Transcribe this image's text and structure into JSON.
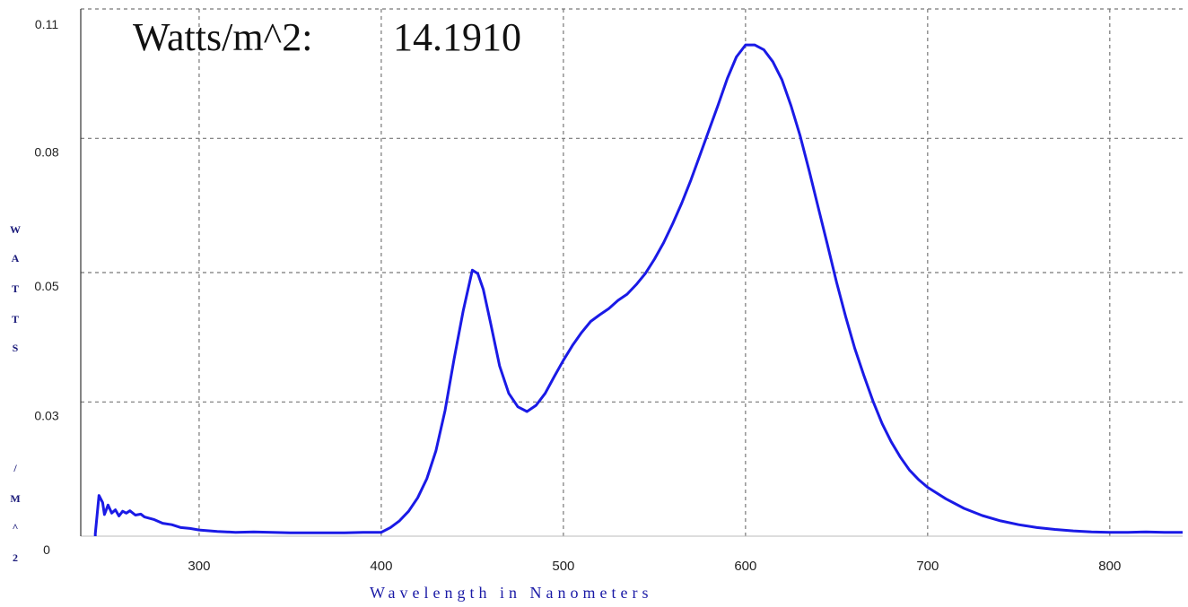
{
  "readout": {
    "label": "Watts/m^2:",
    "value": "14.1910"
  },
  "chart_data": {
    "type": "line",
    "title": "",
    "xlabel": "Wavelength in Nanometers",
    "ylabel_letters": [
      "W",
      "A",
      "T",
      "T",
      "S",
      "/",
      "M",
      "^",
      "2"
    ],
    "xlim": [
      235,
      840
    ],
    "ylim": [
      0,
      0.11
    ],
    "x_ticks": [
      300,
      400,
      500,
      600,
      700,
      800
    ],
    "y_ticks": [
      {
        "value": 0,
        "label": "0"
      },
      {
        "value": 0.028,
        "label": "0.03"
      },
      {
        "value": 0.055,
        "label": "0.05"
      },
      {
        "value": 0.083,
        "label": "0.08"
      },
      {
        "value": 0.11,
        "label": "0.11"
      }
    ],
    "grid": true,
    "line_color": "#1a1ae6",
    "series": [
      {
        "x": [
          243,
          245,
          247,
          248,
          250,
          252,
          254,
          256,
          258,
          260,
          262,
          265,
          268,
          270,
          275,
          280,
          285,
          290,
          295,
          300,
          310,
          320,
          330,
          340,
          350,
          360,
          370,
          380,
          390,
          400,
          405,
          410,
          415,
          420,
          425,
          430,
          435,
          440,
          445,
          450,
          453,
          456,
          460,
          465,
          470,
          475,
          480,
          485,
          490,
          495,
          500,
          505,
          510,
          515,
          520,
          525,
          530,
          535,
          540,
          545,
          550,
          555,
          560,
          565,
          570,
          575,
          580,
          585,
          590,
          595,
          600,
          605,
          610,
          615,
          620,
          625,
          630,
          635,
          640,
          645,
          650,
          655,
          660,
          665,
          670,
          675,
          680,
          685,
          690,
          695,
          700,
          710,
          720,
          730,
          740,
          750,
          760,
          770,
          780,
          790,
          800,
          810,
          820,
          830,
          840
        ],
        "y": [
          0.0005,
          0.0085,
          0.007,
          0.0045,
          0.0065,
          0.0048,
          0.0055,
          0.0042,
          0.0052,
          0.0048,
          0.0053,
          0.0044,
          0.0046,
          0.004,
          0.0035,
          0.0027,
          0.0024,
          0.0018,
          0.0016,
          0.0013,
          0.001,
          0.0008,
          0.0009,
          0.0008,
          0.0007,
          0.0007,
          0.0007,
          0.0007,
          0.0008,
          0.0008,
          0.0018,
          0.0032,
          0.0052,
          0.008,
          0.012,
          0.0178,
          0.0262,
          0.037,
          0.047,
          0.0555,
          0.0548,
          0.0515,
          0.0445,
          0.0355,
          0.0298,
          0.027,
          0.026,
          0.0273,
          0.0298,
          0.0333,
          0.0367,
          0.0398,
          0.0425,
          0.0448,
          0.0462,
          0.0475,
          0.0492,
          0.0505,
          0.0525,
          0.0548,
          0.0578,
          0.0612,
          0.0652,
          0.0695,
          0.0743,
          0.0795,
          0.0848,
          0.09,
          0.0955,
          0.1,
          0.1025,
          0.1025,
          0.1015,
          0.099,
          0.0952,
          0.0898,
          0.0835,
          0.0762,
          0.0685,
          0.0608,
          0.053,
          0.0458,
          0.0392,
          0.0335,
          0.0282,
          0.0235,
          0.0197,
          0.0165,
          0.0138,
          0.0118,
          0.0102,
          0.0078,
          0.0058,
          0.0043,
          0.0032,
          0.0024,
          0.0018,
          0.0014,
          0.0011,
          0.0009,
          0.0008,
          0.0008,
          0.0009,
          0.0008,
          0.0008
        ]
      }
    ]
  }
}
